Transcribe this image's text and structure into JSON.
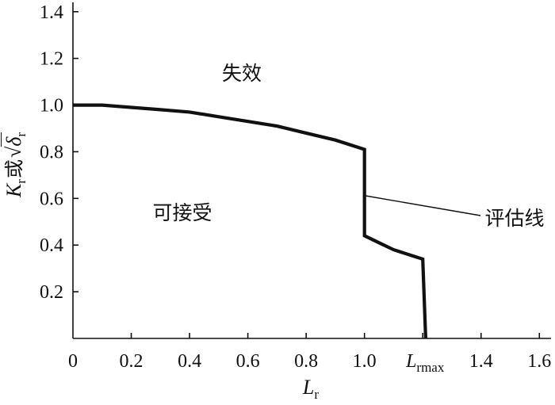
{
  "chart_data": {
    "type": "line",
    "xlabel": {
      "main": "L",
      "sub": "r"
    },
    "ylabel": {
      "k": "K",
      "k_sub": "r",
      "conj": "或",
      "radical": "√",
      "delta": "δ",
      "delta_sub": "r"
    },
    "xlim": [
      0,
      1.64
    ],
    "ylim": [
      0,
      1.44
    ],
    "grid": false,
    "x_ticks": [
      {
        "value": 0,
        "label": "0"
      },
      {
        "value": 0.2,
        "label": "0.2"
      },
      {
        "value": 0.4,
        "label": "0.4"
      },
      {
        "value": 0.6,
        "label": "0.6"
      },
      {
        "value": 0.8,
        "label": "0.8"
      },
      {
        "value": 1.0,
        "label": "1.0"
      },
      {
        "value": 1.2,
        "label": "L",
        "label_sub": "rmax"
      },
      {
        "value": 1.4,
        "label": "1.4"
      },
      {
        "value": 1.6,
        "label": "1.6"
      }
    ],
    "y_ticks": [
      {
        "value": 0.2,
        "label": "0.2"
      },
      {
        "value": 0.4,
        "label": "0.4"
      },
      {
        "value": 0.6,
        "label": "0.6"
      },
      {
        "value": 0.8,
        "label": "0.8"
      },
      {
        "value": 1.0,
        "label": "1.0"
      },
      {
        "value": 1.2,
        "label": "1.2"
      },
      {
        "value": 1.4,
        "label": "1.4"
      }
    ],
    "series": [
      {
        "name": "评估线",
        "x": [
          0,
          0.1,
          0.2,
          0.3,
          0.4,
          0.5,
          0.6,
          0.7,
          0.8,
          0.9,
          1.0,
          1.0,
          1.05,
          1.1,
          1.15,
          1.2,
          1.21
        ],
        "y": [
          1.0,
          1.0,
          0.99,
          0.98,
          0.97,
          0.95,
          0.93,
          0.91,
          0.88,
          0.85,
          0.81,
          0.44,
          0.41,
          0.38,
          0.36,
          0.34,
          0
        ]
      }
    ],
    "regions": {
      "failure": "失效",
      "acceptable": "可接受"
    },
    "colors": {
      "curve": "#111111",
      "axes": "#111111",
      "text": "#111111",
      "background": "#ffffff"
    }
  }
}
